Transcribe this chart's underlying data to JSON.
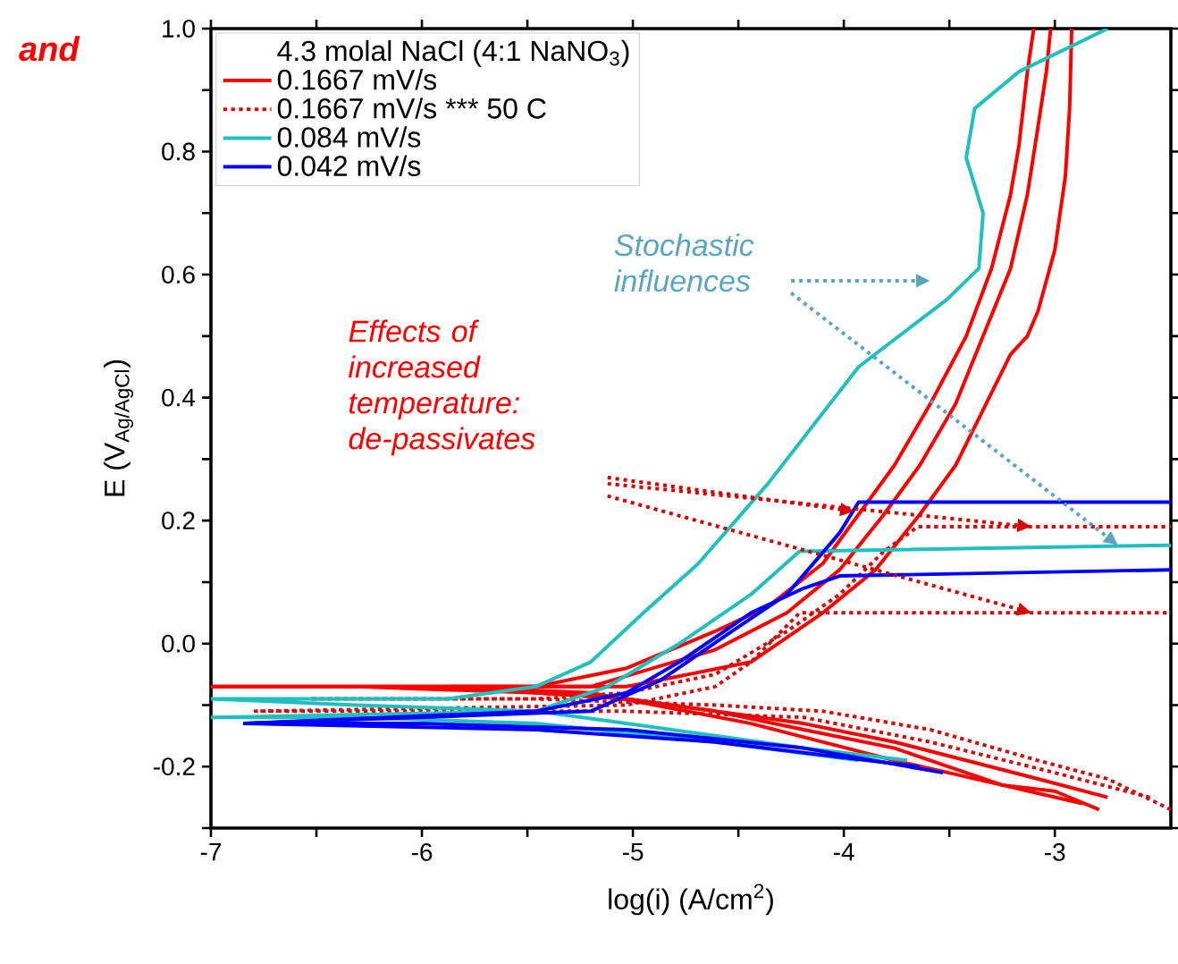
{
  "chart_data": {
    "type": "line",
    "xlabel": "log(i) (A/cm$^{2}$)",
    "ylabel": "E (V$_{Ag/AgCl}$)",
    "legend_title": "4.3 molal NaCl (4:1 NaNO$_{3}$)",
    "annotations": [
      "and",
      "Effects of increased temperature: de-passivates",
      "Stochastic influences"
    ],
    "xlim": [
      -7,
      -2.45
    ],
    "ylim": [
      -0.3,
      1.0
    ],
    "xticks": [
      -7,
      {
        "value": -6.5,
        "label": null
      },
      -6,
      {
        "value": -5.5,
        "label": null
      },
      -5,
      {
        "value": -4.5,
        "label": null
      },
      -4,
      {
        "value": -3.5,
        "label": null
      },
      -3
    ],
    "yticks": [
      {
        "value": -0.3,
        "label": null
      },
      -0.2,
      {
        "value": -0.1,
        "label": null
      },
      {
        "value": 0.0,
        "label": "0.0"
      },
      {
        "value": 0.1,
        "label": null
      },
      0.2,
      {
        "value": 0.3,
        "label": null
      },
      0.4,
      {
        "value": 0.5,
        "label": null
      },
      0.6,
      {
        "value": 0.7,
        "label": null
      },
      0.8,
      {
        "value": 0.9,
        "label": null
      },
      {
        "value": 1.0,
        "label": "1.0"
      }
    ],
    "grid": false,
    "legend": "top left",
    "marker": "none",
    "series": [
      {
        "name": "0.1667 mV/s",
        "color": "#ff0000",
        "line_style": "solid",
        "x": [
          -2.79,
          -3.0,
          -3.25,
          -3.42,
          -3.76,
          -4.19,
          -4.61,
          -5.03,
          -5.46,
          -6.31,
          -7.0,
          -5.46,
          -5.03,
          -4.61,
          -4.36,
          -4.1,
          -3.93,
          -3.76,
          -3.59,
          -3.42,
          -3.3,
          -3.21,
          -3.17,
          -3.13,
          -3.1
        ],
        "values": [
          -0.27,
          -0.24,
          -0.23,
          -0.21,
          -0.17,
          -0.14,
          -0.11,
          -0.09,
          -0.08,
          -0.07,
          -0.07,
          -0.07,
          -0.04,
          0.02,
          0.06,
          0.13,
          0.21,
          0.29,
          0.39,
          0.5,
          0.61,
          0.73,
          0.81,
          0.93,
          1.0
        ]
      },
      {
        "color": "#ff0000",
        "line_style": "solid",
        "x": [
          -2.75,
          -3.08,
          -3.42,
          -3.76,
          -4.19,
          -4.61,
          -5.03,
          -5.88,
          -7.0,
          -5.2,
          -4.61,
          -4.27,
          -4.02,
          -3.81,
          -3.64,
          -3.47,
          -3.34,
          -3.21,
          -3.13,
          -3.08,
          -3.04,
          -3.02
        ],
        "values": [
          -0.25,
          -0.22,
          -0.19,
          -0.16,
          -0.13,
          -0.11,
          -0.09,
          -0.07,
          -0.07,
          -0.07,
          -0.01,
          0.05,
          0.12,
          0.21,
          0.29,
          0.39,
          0.5,
          0.61,
          0.73,
          0.84,
          0.93,
          1.0
        ]
      },
      {
        "color": "#ff0000",
        "line_style": "solid",
        "x": [
          -2.87,
          -3.25,
          -3.76,
          -4.44,
          -5.2,
          -5.88,
          -5.03,
          -4.44,
          -4.1,
          -3.85,
          -3.64,
          -3.47,
          -3.34,
          -3.21,
          -3.13,
          -3.08,
          -3.0,
          -2.95,
          -2.93,
          -2.92
        ],
        "values": [
          -0.26,
          -0.23,
          -0.19,
          -0.13,
          -0.08,
          -0.07,
          -0.07,
          -0.03,
          0.05,
          0.12,
          0.21,
          0.29,
          0.38,
          0.47,
          0.5,
          0.54,
          0.64,
          0.76,
          0.87,
          1.0
        ]
      },
      {
        "name": "0.1667 mV/s *** 50 C",
        "color": "#d01010",
        "line_style": "dotted",
        "x": [
          -2.45,
          -2.75,
          -3.08,
          -3.59,
          -4.1,
          -4.61,
          -5.46,
          -6.53,
          -5.46,
          -5.03,
          -4.61,
          -4.27,
          -4.02,
          -3.81,
          -3.65,
          -2.45
        ],
        "values": [
          -0.27,
          -0.22,
          -0.19,
          -0.14,
          -0.11,
          -0.1,
          -0.09,
          -0.09,
          -0.09,
          -0.08,
          -0.05,
          0.02,
          0.08,
          0.15,
          0.19,
          0.19
        ]
      },
      {
        "color": "#d01010",
        "line_style": "dotted",
        "x": [
          -2.55,
          -3.0,
          -3.59,
          -4.19,
          -5.03,
          -6.79,
          -5.03,
          -4.61,
          -4.44,
          -4.21,
          -2.45
        ],
        "values": [
          -0.25,
          -0.21,
          -0.16,
          -0.12,
          -0.11,
          -0.11,
          -0.1,
          -0.07,
          -0.03,
          0.05,
          0.05
        ]
      },
      {
        "name": "0.084 mV/s",
        "color": "#20c0c0",
        "line_style": "solid",
        "x": [
          -3.7,
          -4.19,
          -4.61,
          -5.03,
          -5.46,
          -6.31,
          -7.0,
          -5.88,
          -5.46,
          -5.2,
          -4.95,
          -4.69,
          -4.36,
          -3.93,
          -3.51,
          -3.36,
          -3.34,
          -3.42,
          -3.38,
          -3.17,
          -2.75
        ],
        "values": [
          -0.19,
          -0.17,
          -0.15,
          -0.13,
          -0.11,
          -0.1,
          -0.09,
          -0.09,
          -0.07,
          -0.03,
          0.05,
          0.13,
          0.26,
          0.45,
          0.56,
          0.61,
          0.7,
          0.79,
          0.87,
          0.93,
          1.0
        ]
      },
      {
        "color": "#20c0c0",
        "line_style": "solid",
        "x": [
          -3.93,
          -4.61,
          -5.46,
          -6.31,
          -7.0,
          -5.46,
          -5.12,
          -4.78,
          -4.44,
          -4.21,
          -2.45
        ],
        "values": [
          -0.19,
          -0.16,
          -0.13,
          -0.12,
          -0.12,
          -0.11,
          -0.07,
          0.0,
          0.08,
          0.15,
          0.16
        ]
      },
      {
        "name": "0.042 mV/s",
        "color": "#0000ff",
        "line_style": "solid",
        "x": [
          -3.53,
          -4.19,
          -5.03,
          -6.0,
          -6.84,
          -5.46,
          -5.03,
          -4.78,
          -4.44,
          -4.19,
          -4.02,
          -2.45
        ],
        "values": [
          -0.21,
          -0.17,
          -0.14,
          -0.13,
          -0.13,
          -0.11,
          -0.08,
          -0.03,
          0.05,
          0.09,
          0.11,
          0.12
        ]
      },
      {
        "color": "#0000ff",
        "line_style": "solid",
        "x": [
          -3.64,
          -4.61,
          -5.46,
          -6.84,
          -5.2,
          -4.87,
          -4.53,
          -4.27,
          -4.02,
          -3.93,
          -2.45
        ],
        "values": [
          -0.2,
          -0.16,
          -0.14,
          -0.13,
          -0.11,
          -0.06,
          0.02,
          0.08,
          0.18,
          0.23,
          0.23
        ]
      }
    ]
  }
}
